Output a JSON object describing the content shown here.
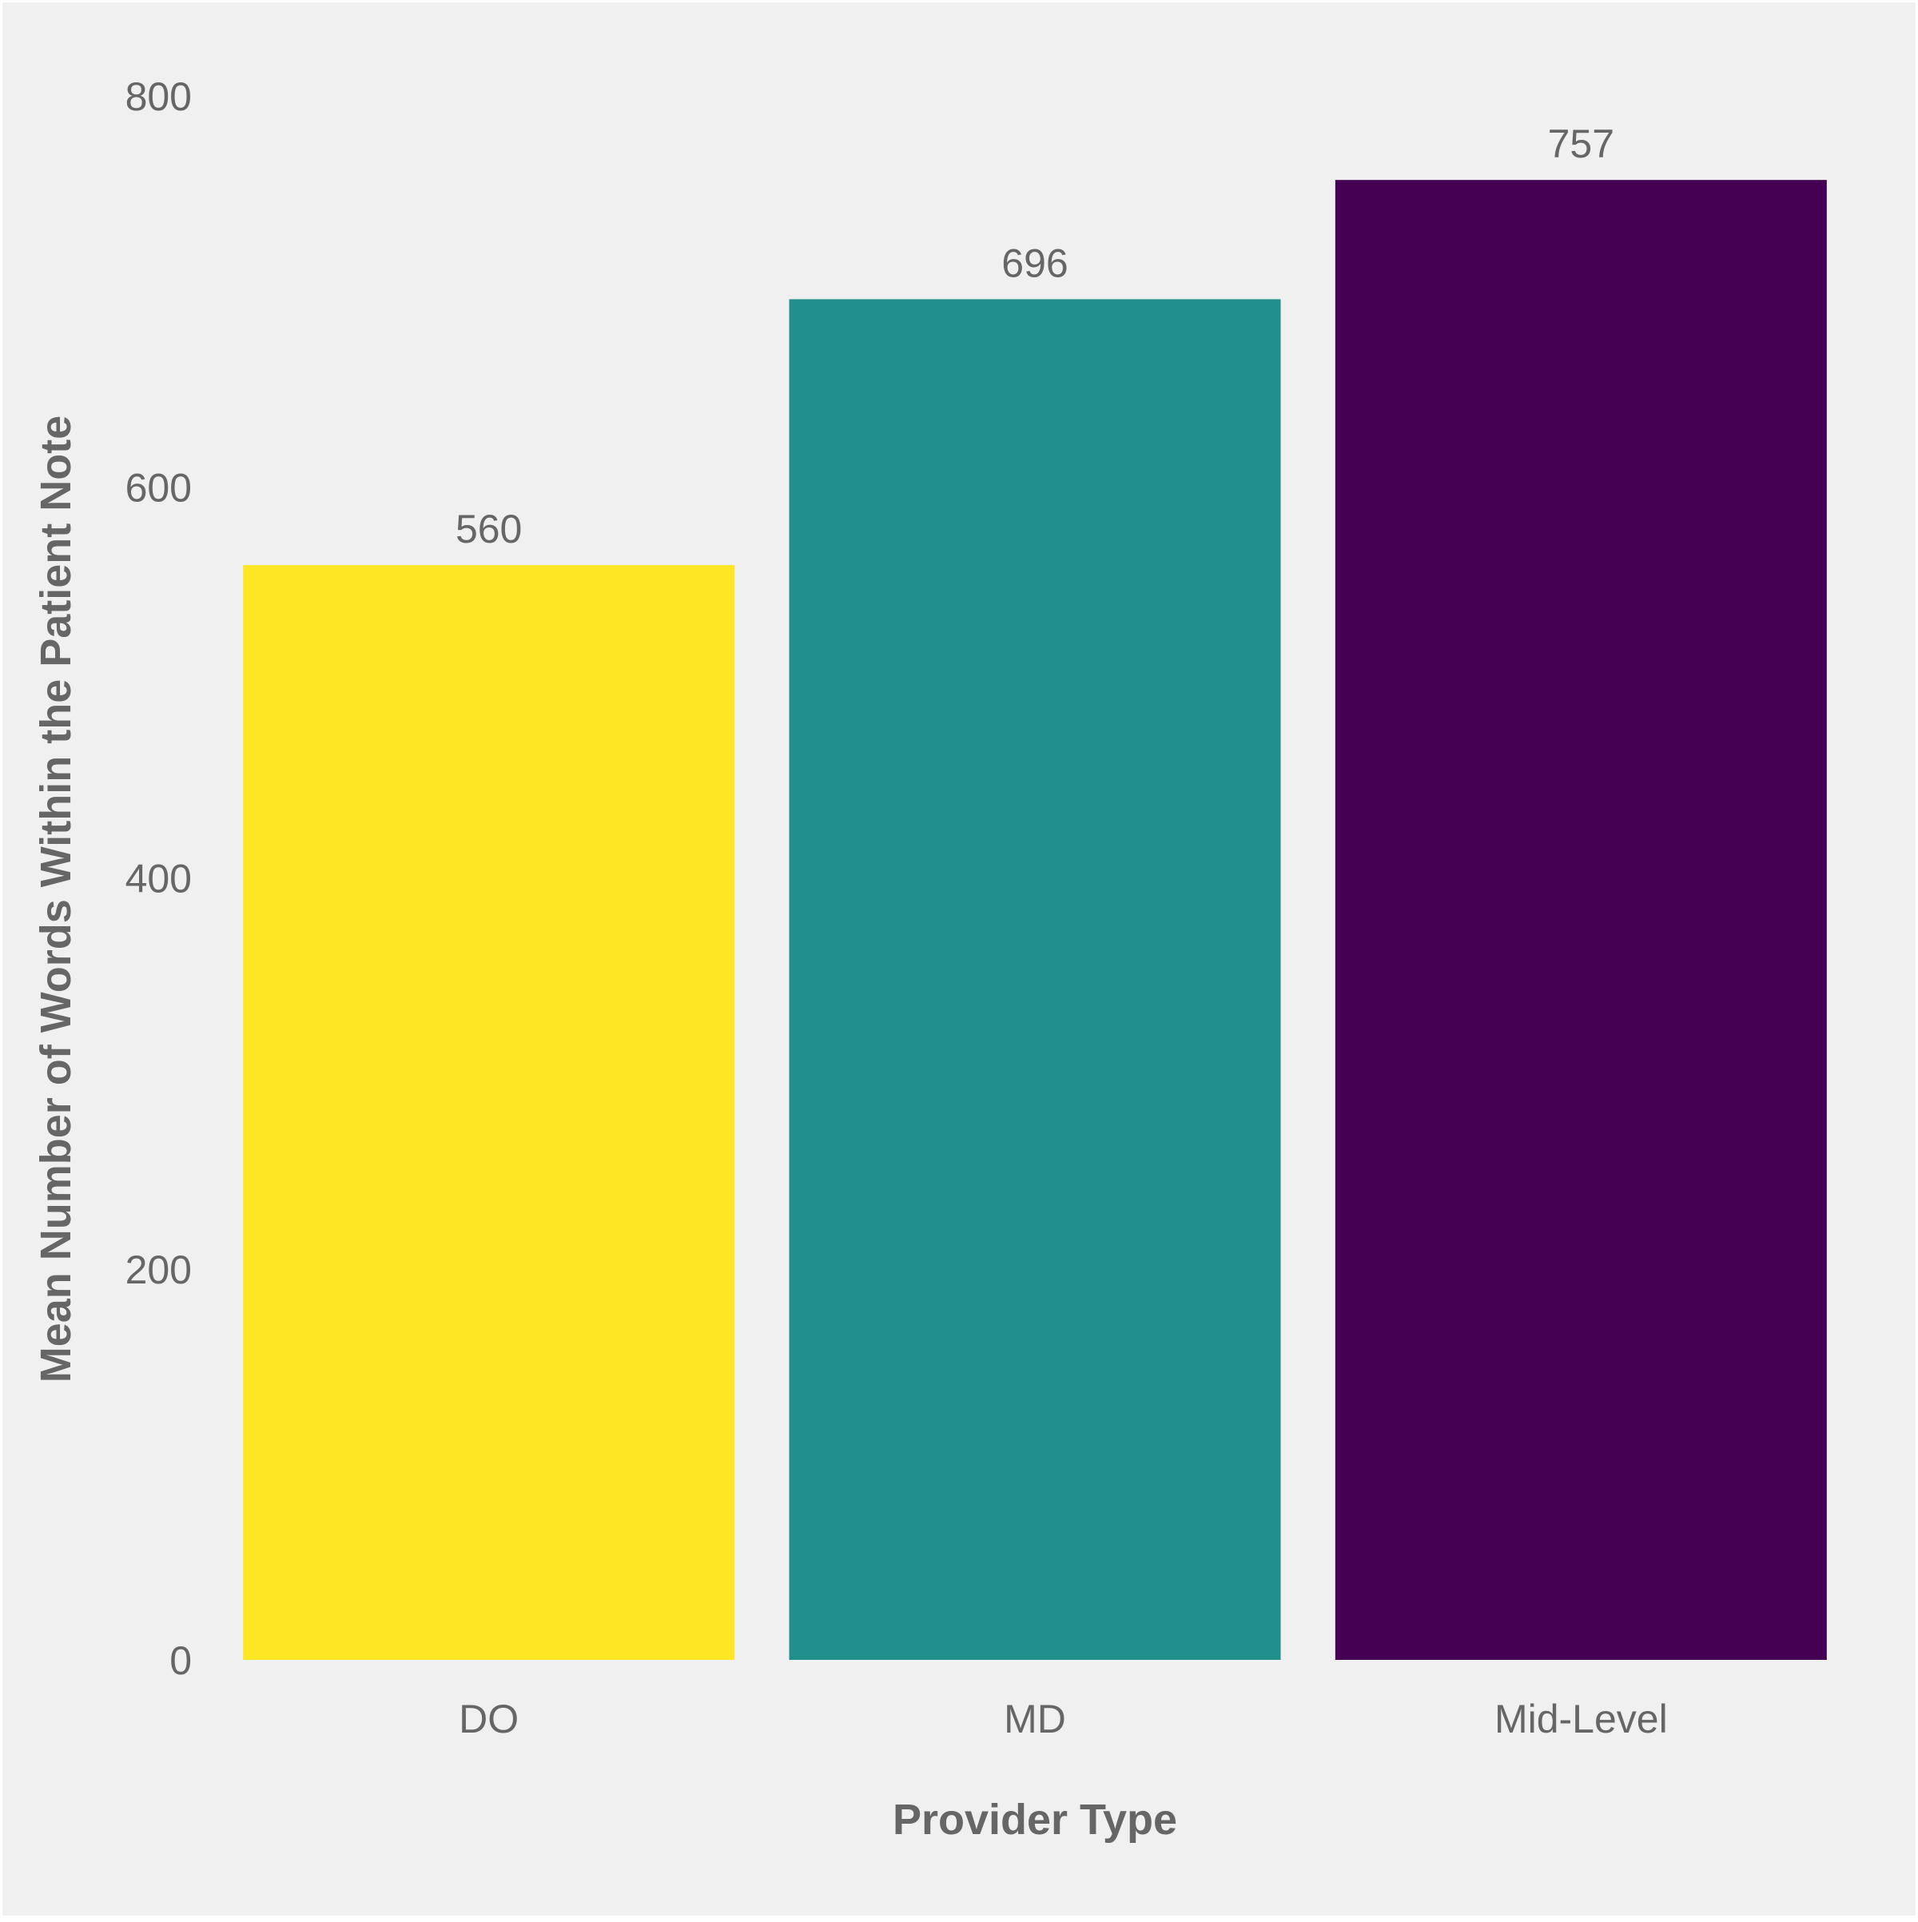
{
  "chart_data": {
    "type": "bar",
    "title": "",
    "xlabel": "Provider Type",
    "ylabel": "Mean Number of Words Within the Patient Note",
    "categories": [
      "DO",
      "MD",
      "Mid-Level"
    ],
    "values": [
      560,
      696,
      757
    ],
    "value_labels": [
      "560",
      "696",
      "757"
    ],
    "colors": [
      "#FDE725",
      "#21908C",
      "#440154"
    ],
    "ylim": [
      0,
      800
    ],
    "yticks": [
      0,
      200,
      400,
      600,
      800
    ],
    "ytick_labels": [
      "0",
      "200",
      "400",
      "600",
      "800"
    ],
    "grid": false,
    "legend": "none"
  },
  "style": {
    "background": "#F0F0F0",
    "border": "#FFFFFF",
    "text_color": "#666666"
  }
}
